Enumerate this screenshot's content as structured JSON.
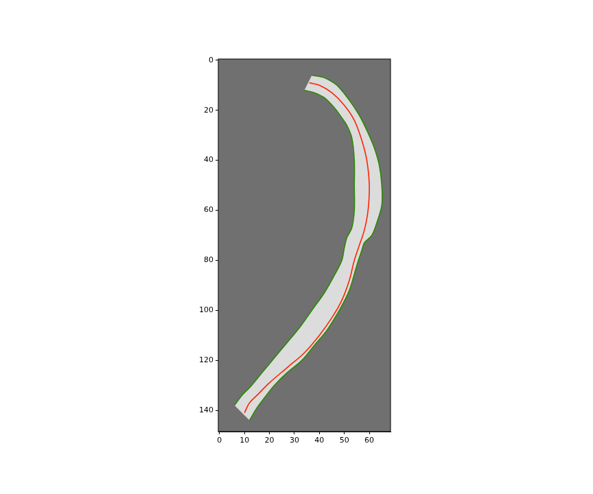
{
  "chart_data": {
    "type": "line",
    "xlim": [
      -0.5,
      68.5
    ],
    "xticks": [
      0,
      10,
      20,
      30,
      40,
      50,
      60
    ],
    "ylim": [
      148.5,
      -0.5
    ],
    "yticks": [
      0,
      20,
      40,
      60,
      80,
      100,
      120,
      140
    ],
    "grid": false,
    "series": [
      {
        "color": "#ff2200",
        "x": [
          36,
          40,
          45,
          50,
          54,
          57,
          59,
          60,
          59.5,
          58,
          56,
          54,
          52,
          49,
          45,
          40,
          34,
          27,
          20,
          15,
          12,
          10
        ],
        "values": [
          9,
          10,
          13,
          18,
          24,
          32,
          40,
          50,
          60,
          68,
          74,
          80,
          88,
          96,
          103,
          110,
          117,
          123,
          129,
          134,
          137,
          141
        ]
      },
      {
        "color": "#2a8a00",
        "x": [
          37,
          42,
          47,
          52,
          56,
          59,
          62,
          64,
          65,
          65,
          63,
          61,
          58,
          57,
          55,
          52,
          48,
          43,
          38,
          33,
          27,
          22,
          18,
          15,
          12
        ],
        "values": [
          6,
          7,
          10,
          16,
          22,
          28,
          35,
          42,
          50,
          58,
          65,
          70,
          73,
          76,
          82,
          92,
          100,
          108,
          114,
          120,
          125,
          130,
          135,
          139,
          144
        ]
      },
      {
        "color": "#2a8a00",
        "x": [
          34,
          38,
          42,
          46,
          49,
          51,
          53,
          54,
          54,
          54,
          53,
          51,
          50,
          49,
          46,
          42,
          37,
          32,
          27,
          22,
          17,
          12,
          9,
          6
        ],
        "values": [
          12,
          13,
          15,
          19,
          23,
          26,
          31,
          40,
          50,
          60,
          67,
          71,
          75,
          80,
          86,
          93,
          100,
          107,
          113,
          119,
          125,
          131,
          134,
          138
        ]
      }
    ]
  }
}
